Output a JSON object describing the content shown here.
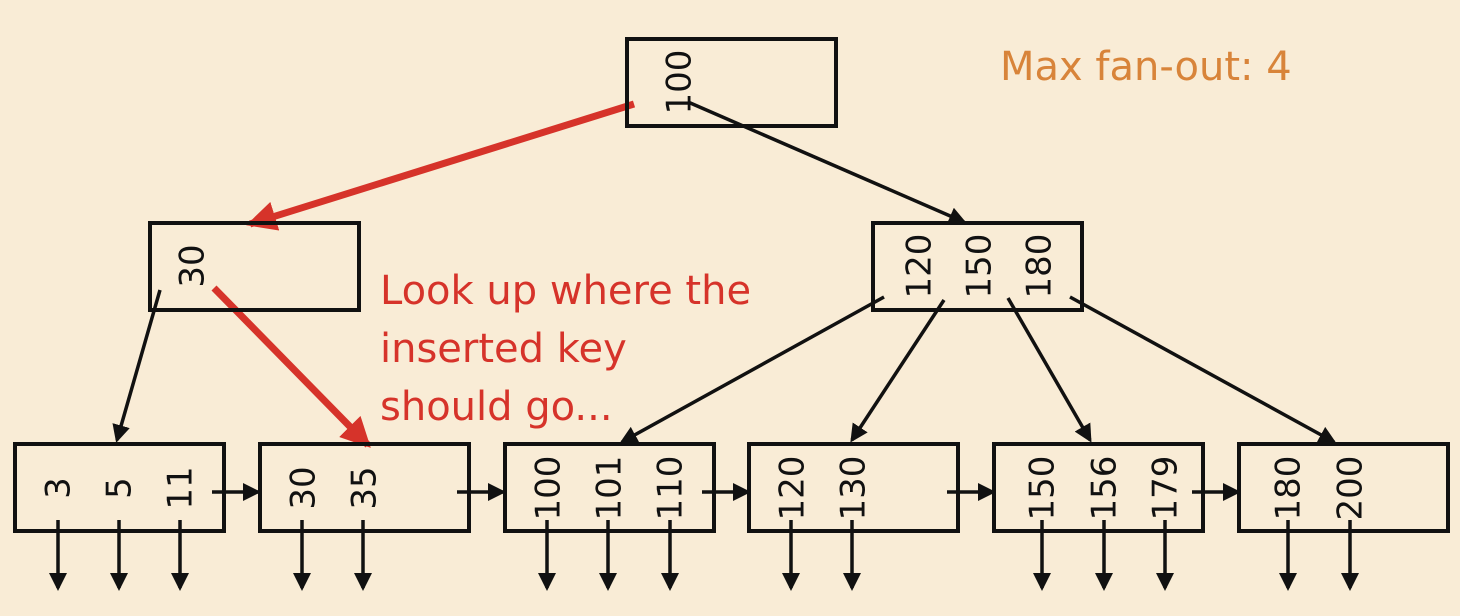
{
  "annotations": {
    "fanout": "Max fan-out: 4",
    "lookup": [
      "Look up where the",
      "inserted key",
      "should go..."
    ]
  },
  "colors": {
    "background": "#f9ecd6",
    "ink": "#111111",
    "highlight": "#d6332a",
    "note": "#d8843a"
  },
  "tree": {
    "root": {
      "keys": [
        "100"
      ]
    },
    "internal": [
      {
        "keys": [
          "30"
        ]
      },
      {
        "keys": [
          "120",
          "150",
          "180"
        ]
      }
    ],
    "leaves": [
      {
        "keys": [
          "3",
          "5",
          "11"
        ]
      },
      {
        "keys": [
          "30",
          "35"
        ]
      },
      {
        "keys": [
          "100",
          "101",
          "110"
        ]
      },
      {
        "keys": [
          "120",
          "130"
        ]
      },
      {
        "keys": [
          "150",
          "156",
          "179"
        ]
      },
      {
        "keys": [
          "180",
          "200"
        ]
      }
    ],
    "highlighted_path": [
      "root",
      "internal-30",
      "leaf-30-35"
    ]
  }
}
